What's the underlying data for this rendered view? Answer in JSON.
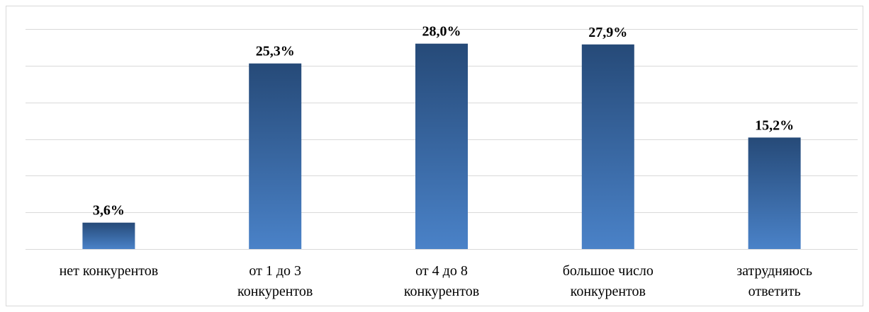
{
  "chart_data": {
    "type": "bar",
    "categories": [
      [
        "нет конкурентов"
      ],
      [
        "от 1 до 3",
        "конкурентов"
      ],
      [
        "от 4 до 8",
        "конкурентов"
      ],
      [
        "большое число",
        "конкурентов"
      ],
      [
        "затрудняюсь",
        "ответить"
      ]
    ],
    "values": [
      3.6,
      25.3,
      28.0,
      27.9,
      15.2
    ],
    "data_labels": [
      "3,6%",
      "25,3%",
      "28,0%",
      "27,9%",
      "15,2%"
    ],
    "title": "",
    "xlabel": "",
    "ylabel": "",
    "ylim": [
      0,
      30
    ],
    "y_gridlines": [
      0,
      5,
      10,
      15,
      20,
      25,
      30
    ],
    "grid": true,
    "legend": "none",
    "colors": {
      "bar_top": "#264a78",
      "bar_bottom": "#4a82c8",
      "gridline": "#d9d9d9"
    }
  }
}
